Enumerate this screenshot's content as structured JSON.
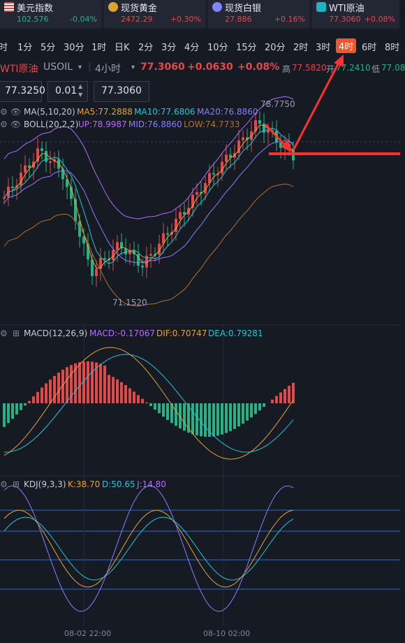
{
  "tickers": [
    {
      "name": "美元指数",
      "price": "102.576",
      "change": "-0.04%",
      "dir": "down",
      "icon": "flag-icon"
    },
    {
      "name": "现货黄金",
      "price": "2472.29",
      "change": "+0.30%",
      "dir": "up",
      "icon": "gold-icon"
    },
    {
      "name": "现货白银",
      "price": "27.886",
      "change": "+0.16%",
      "dir": "up",
      "icon": "silver-icon"
    },
    {
      "name": "WTI原油",
      "price": "77.3060",
      "change": "+0.08%",
      "dir": "up",
      "icon": "oil-icon"
    }
  ],
  "timeframes": [
    "时",
    "1分",
    "5分",
    "30分",
    "1时",
    "日K",
    "2分",
    "3分",
    "4分",
    "10分",
    "15分",
    "20分",
    "2时",
    "3时",
    "4时",
    "6时",
    "8时"
  ],
  "active_timeframe": "4时",
  "instrument": {
    "name": "WTI原油",
    "code": "USOIL",
    "period": "4小时",
    "price": "77.3060",
    "change": "+0.0630",
    "change_pct": "+0.08%",
    "high_label": "高",
    "high": "77.5820",
    "open_label": "开",
    "open": "77.2410",
    "low_label": "低",
    "low": "77.08"
  },
  "inputs": {
    "left_price": "77.3250",
    "lot": "0.01",
    "right_price": "77.3060"
  },
  "ma_legend": {
    "title": "MA(5,10,20)",
    "ma5": "MA5:77.2888",
    "ma10": "MA10:77.6806",
    "ma20": "MA20:76.8860"
  },
  "boll_legend": {
    "title": "BOLL(20,2,2)",
    "up": "UP:78.9987",
    "mid": "MID:76.8860",
    "low": "LOW:74.7733"
  },
  "price_annotations": {
    "high": "78.7750",
    "low": "71.1520"
  },
  "macd_legend": {
    "title": "MACD(12,26,9)",
    "macd": "MACD:-0.17067",
    "dif": "DIF:0.70747",
    "dea": "DEA:0.79281"
  },
  "kdj_legend": {
    "title": "KDJ(9,3,3)",
    "k": "K:38.70",
    "d": "D:50.65",
    "j": "J:14.80"
  },
  "time_labels": [
    "08-02 22:00",
    "08-10 02:00"
  ],
  "colors": {
    "up": "#e04a4a",
    "down": "#27b185",
    "ma5": "#e6a23c",
    "ma10": "#23c6d6",
    "ma20": "#8c7dff",
    "boll_up": "#b46cff",
    "boll_low": "#b5702d",
    "arrow": "#ff3030"
  }
}
